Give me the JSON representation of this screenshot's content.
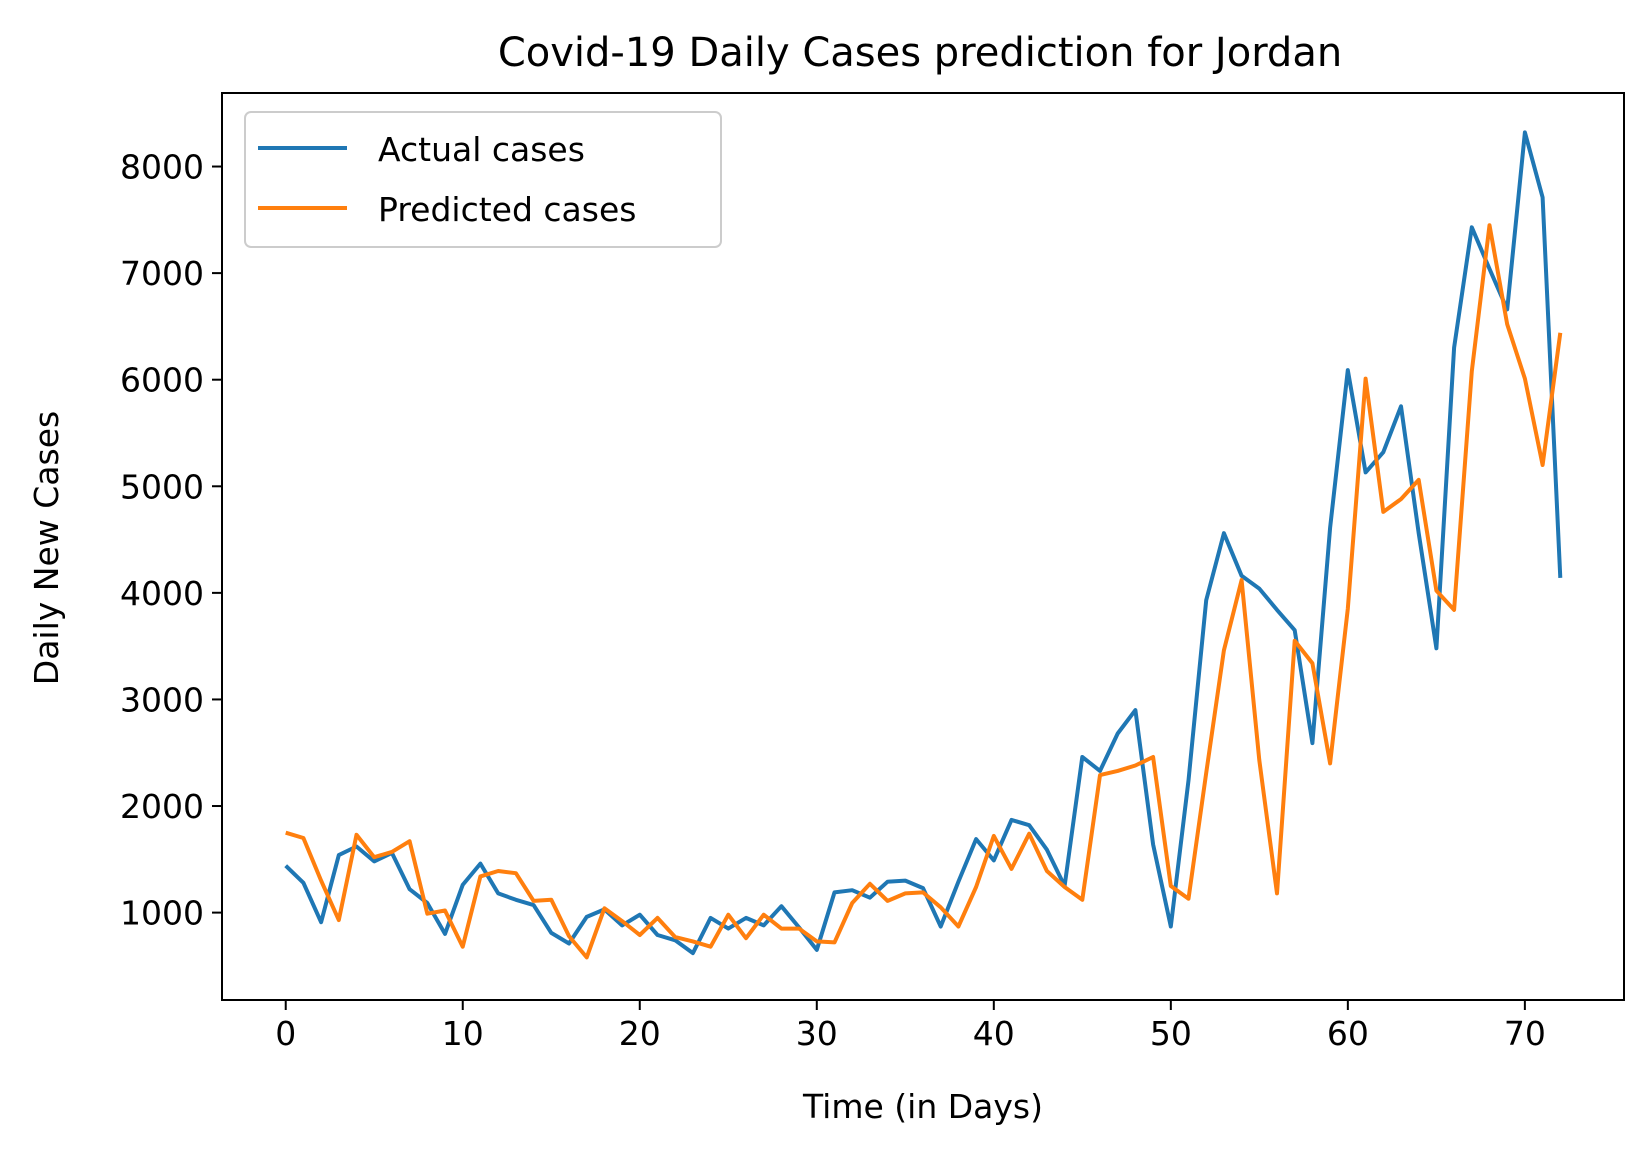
{
  "chart_data": {
    "type": "line",
    "title": "Covid-19 Daily Cases prediction for Jordan",
    "xlabel": "Time (in Days)",
    "ylabel": "Daily New Cases",
    "xlim": [
      -3.6,
      75.6
    ],
    "ylim": [
      180,
      8690
    ],
    "xticks": [
      0,
      10,
      20,
      30,
      40,
      50,
      60,
      70
    ],
    "yticks": [
      1000,
      2000,
      3000,
      4000,
      5000,
      6000,
      7000,
      8000
    ],
    "grid": false,
    "legend_position": "upper-left",
    "x": [
      0,
      1,
      2,
      3,
      4,
      5,
      6,
      7,
      8,
      9,
      10,
      11,
      12,
      13,
      14,
      15,
      16,
      17,
      18,
      19,
      20,
      21,
      22,
      23,
      24,
      25,
      26,
      27,
      28,
      29,
      30,
      31,
      32,
      33,
      34,
      35,
      36,
      37,
      38,
      39,
      40,
      41,
      42,
      43,
      44,
      45,
      46,
      47,
      48,
      49,
      50,
      51,
      52,
      53,
      54,
      55,
      56,
      57,
      58,
      59,
      60,
      61,
      62,
      63,
      64,
      65,
      66,
      67,
      68,
      69,
      70,
      71,
      72
    ],
    "series": [
      {
        "name": "Actual cases",
        "color": "#1f77b4",
        "values": [
          1440,
          1280,
          910,
          1540,
          1620,
          1480,
          1560,
          1220,
          1090,
          800,
          1260,
          1460,
          1180,
          1120,
          1070,
          810,
          710,
          960,
          1030,
          880,
          980,
          790,
          740,
          620,
          950,
          850,
          950,
          880,
          1060,
          860,
          650,
          1190,
          1210,
          1140,
          1290,
          1300,
          1230,
          870,
          1290,
          1690,
          1490,
          1870,
          1820,
          1590,
          1250,
          2460,
          2330,
          2680,
          2900,
          1640,
          870,
          2240,
          3930,
          4560,
          4160,
          4040,
          3840,
          3650,
          2590,
          4610,
          6090,
          5130,
          5320,
          5750,
          4560,
          3480,
          6300,
          7430,
          7040,
          6660,
          8320,
          7710,
          4140
        ]
      },
      {
        "name": "Predicted cases",
        "color": "#ff7f0e",
        "values": [
          1750,
          1700,
          1300,
          930,
          1730,
          1520,
          1570,
          1670,
          990,
          1020,
          680,
          1340,
          1390,
          1370,
          1110,
          1120,
          780,
          580,
          1040,
          920,
          790,
          950,
          770,
          730,
          680,
          980,
          760,
          980,
          850,
          850,
          730,
          720,
          1090,
          1270,
          1110,
          1180,
          1190,
          1050,
          870,
          1240,
          1720,
          1410,
          1740,
          1390,
          1240,
          1120,
          2290,
          2330,
          2380,
          2460,
          1250,
          1130,
          2310,
          3460,
          4120,
          2430,
          1180,
          3550,
          3340,
          2400,
          3850,
          6010,
          4760,
          4880,
          5060,
          4020,
          3840,
          6080,
          7450,
          6520,
          6010,
          5200,
          6440
        ]
      }
    ]
  }
}
